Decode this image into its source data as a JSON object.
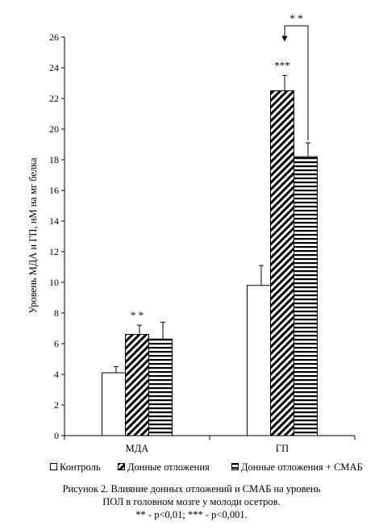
{
  "chart_data": {
    "type": "bar",
    "categories": [
      "МДА",
      "ГП"
    ],
    "series": [
      {
        "name": "Контроль",
        "values": [
          4.1,
          9.8
        ],
        "errors": [
          0.4,
          1.3
        ],
        "pattern": "none"
      },
      {
        "name": "Донные отложения",
        "values": [
          6.6,
          22.5
        ],
        "errors": [
          0.6,
          1.0
        ],
        "pattern": "diagonal"
      },
      {
        "name": "Донные отложения + СМАБ",
        "values": [
          6.3,
          18.2
        ],
        "errors": [
          1.1,
          0.9
        ],
        "pattern": "horizontal"
      }
    ],
    "significance": [
      {
        "category_index": 0,
        "series_index": 1,
        "label": "* *"
      },
      {
        "category_index": 1,
        "series_index": 1,
        "label": "***"
      }
    ],
    "bracket": {
      "category_index": 1,
      "from_series": 2,
      "to_series": 1,
      "label": "* *"
    },
    "ylabel": "Уровень МДА и ГП, нМ на мг белка",
    "xlabel": "",
    "ylim": [
      0,
      26
    ],
    "yticks": [
      0,
      2,
      4,
      6,
      8,
      10,
      12,
      14,
      16,
      18,
      20,
      22,
      24,
      26
    ],
    "grid": false,
    "legend_position": "bottom"
  },
  "caption": {
    "line1": "Рисунок 2. Влияние донных отложений и СМАБ на уровень",
    "line2": "ПОЛ в головном мозге у молоди осетров.",
    "line3": "** - р<0,01; *** - р<0,001."
  }
}
